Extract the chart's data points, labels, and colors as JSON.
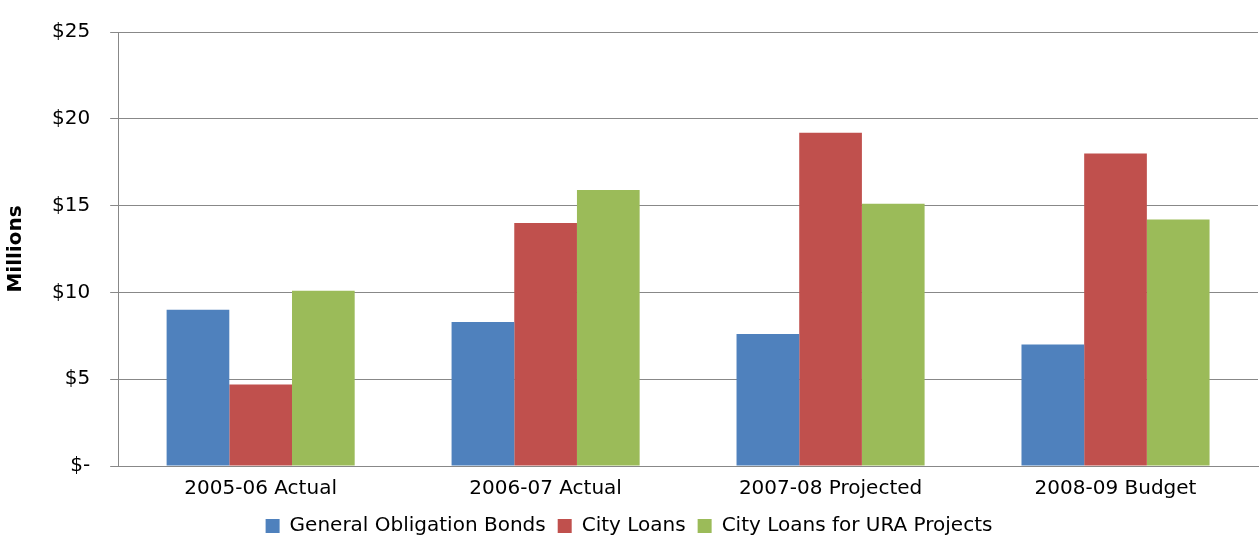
{
  "chart_data": {
    "type": "bar",
    "ylabel": "Millions",
    "categories": [
      "2005-06 Actual",
      "2006-07 Actual",
      "2007-08 Projected",
      "2008-09 Budget"
    ],
    "series": [
      {
        "name": "General Obligation Bonds",
        "color": "#4f81bd",
        "values": [
          9.0,
          8.3,
          7.6,
          7.0
        ]
      },
      {
        "name": "City Loans",
        "color": "#c0504d",
        "values": [
          4.7,
          14.0,
          19.2,
          18.0
        ]
      },
      {
        "name": "City Loans for URA Projects",
        "color": "#9bbb59",
        "values": [
          10.1,
          15.9,
          15.1,
          14.2
        ]
      }
    ],
    "ylim": [
      0,
      25
    ],
    "yticks": [
      {
        "value": 0,
        "label": "$-"
      },
      {
        "value": 5,
        "label": "$5"
      },
      {
        "value": 10,
        "label": "$10"
      },
      {
        "value": 15,
        "label": "$15"
      },
      {
        "value": 20,
        "label": "$20"
      },
      {
        "value": 25,
        "label": "$25"
      }
    ],
    "grid": "y",
    "legend": "bottom"
  }
}
